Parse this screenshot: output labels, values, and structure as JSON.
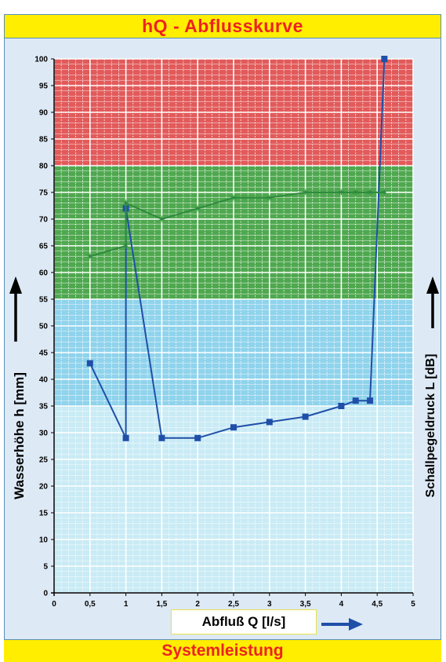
{
  "header": {
    "title": "hQ - Abflusskurve"
  },
  "footer": {
    "label": "Systemleistung"
  },
  "colors": {
    "red_zone": "#e25a5a",
    "green_zone": "#4fa84f",
    "blue_zone": "#8fd3ec",
    "light_zone": "#c9ebf5",
    "blue_series": "#1f4fa8",
    "green_series": "#2e8b3e",
    "arrow": "#1f4fa8"
  },
  "chart_data": {
    "type": "line",
    "xlabel": "Abfluß Q [l/s]",
    "ylabel": "Wasserhöhe h [mm]",
    "ylabel_right": "Schallpegeldruck L [dB]",
    "xlim": [
      0,
      5
    ],
    "ylim": [
      0,
      100
    ],
    "x_ticks": [
      0,
      0.5,
      1,
      1.5,
      2,
      2.5,
      3,
      3.5,
      4,
      4.5,
      5
    ],
    "x_tick_labels": [
      "0",
      "0,5",
      "1",
      "1,5",
      "2",
      "2,5",
      "3",
      "3,5",
      "4",
      "4,5",
      "5"
    ],
    "y_ticks": [
      0,
      5,
      10,
      15,
      20,
      25,
      30,
      35,
      40,
      45,
      50,
      55,
      60,
      65,
      70,
      75,
      80,
      85,
      90,
      95,
      100
    ],
    "grid": true,
    "bands": [
      {
        "from": 80,
        "to": 100,
        "color": "#e25a5a"
      },
      {
        "from": 55,
        "to": 80,
        "color": "#4fa84f"
      },
      {
        "from": 35,
        "to": 55,
        "color": "#8fd3ec"
      },
      {
        "from": 0,
        "to": 35,
        "color": "#c9ebf5"
      }
    ],
    "series": [
      {
        "marker": "square",
        "color": "#1f4fa8",
        "points": [
          [
            0.5,
            43
          ],
          [
            1,
            29
          ],
          [
            1,
            72
          ],
          [
            1.5,
            29
          ],
          [
            2,
            29
          ],
          [
            2.5,
            31
          ],
          [
            3,
            32
          ],
          [
            3.5,
            33
          ],
          [
            4,
            35
          ],
          [
            4.2,
            36
          ],
          [
            4.4,
            36
          ],
          [
            4.6,
            100
          ]
        ]
      },
      {
        "marker": "star",
        "color": "#2e8b3e",
        "points": [
          [
            0.5,
            63
          ],
          [
            1,
            65
          ],
          [
            1,
            73
          ],
          [
            1.5,
            70
          ],
          [
            2,
            72
          ],
          [
            2.5,
            74
          ],
          [
            3,
            74
          ],
          [
            3.5,
            75
          ],
          [
            4,
            75
          ],
          [
            4.2,
            75
          ],
          [
            4.4,
            75
          ],
          [
            4.6,
            75
          ]
        ]
      }
    ]
  }
}
